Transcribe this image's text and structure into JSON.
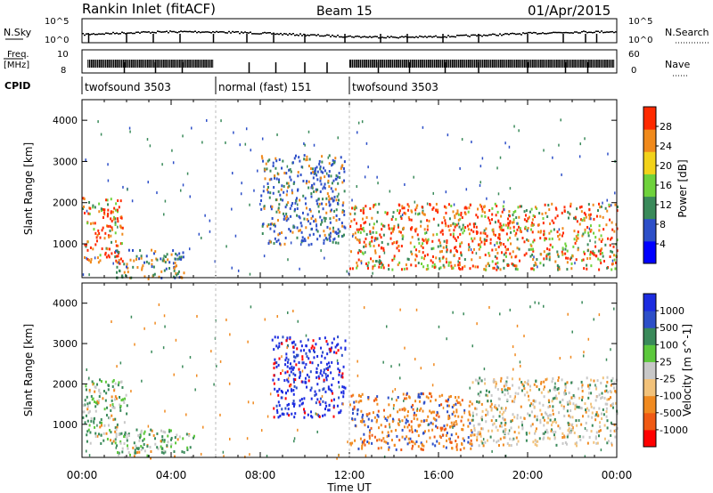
{
  "header": {
    "title": "Rankin Inlet (fitACF)",
    "beam": "Beam 15",
    "date": "01/Apr/2015"
  },
  "strip_labels": {
    "nsky": "N.Sky",
    "nsearch": "N.Search",
    "freq_top": "Freq.",
    "freq_unit": "[MHz]",
    "nave": "Nave",
    "cpid": "CPID",
    "nsky_ticks": [
      "10^5",
      "10^0"
    ],
    "nsearch_ticks": [
      "10^5",
      "10^0"
    ],
    "freq_ticks": [
      "10",
      "8"
    ],
    "nave_ticks": [
      "60",
      "0"
    ]
  },
  "cpid_segments": [
    {
      "label": "twofsound 3503",
      "start_hour": 0
    },
    {
      "label": "normal (fast) 151",
      "start_hour": 6
    },
    {
      "label": "twofsound 3503",
      "start_hour": 12
    }
  ],
  "chart_data": [
    {
      "type": "heatmap",
      "name": "power-panel",
      "ylabel": "Slant Range [km]",
      "xlabel": "",
      "xlim_hours": [
        0,
        24
      ],
      "ylim": [
        180,
        4500
      ],
      "yticks": [
        1000,
        2000,
        3000,
        4000
      ],
      "colorbar": {
        "label": "Power [dB]",
        "ticks": [
          "28",
          "24",
          "20",
          "16",
          "12",
          "8",
          "4"
        ],
        "colors": [
          "#0000ff",
          "#2d4fc8",
          "#3a8a5a",
          "#6fd23c",
          "#f2d21a",
          "#f08a1c",
          "#ff2a00"
        ],
        "range": [
          0,
          30
        ]
      },
      "regions": [
        {
          "t0": 0.0,
          "t1": 1.8,
          "r0": 550,
          "r1": 2150,
          "level": "high"
        },
        {
          "t0": 1.5,
          "t1": 4.6,
          "r0": 180,
          "r1": 900,
          "level": "mid"
        },
        {
          "t0": 8.0,
          "t1": 11.8,
          "r0": 1000,
          "r1": 3200,
          "level": "low"
        },
        {
          "t0": 12.0,
          "t1": 24.0,
          "r0": 400,
          "r1": 2000,
          "level": "high"
        }
      ]
    },
    {
      "type": "heatmap",
      "name": "velocity-panel",
      "ylabel": "Slant Range [km]",
      "xlabel": "Time UT",
      "xticks": [
        "00:00",
        "04:00",
        "08:00",
        "12:00",
        "16:00",
        "20:00",
        "00:00"
      ],
      "xlim_hours": [
        0,
        24
      ],
      "ylim": [
        180,
        4500
      ],
      "yticks": [
        1000,
        2000,
        3000,
        4000
      ],
      "colorbar": {
        "label": "Velocity [m s^-1]",
        "ticks": [
          "1000",
          "500",
          "100",
          "25",
          "-25",
          "-100",
          "-500",
          "-1000"
        ],
        "colors": [
          "#ff0000",
          "#f05a14",
          "#f08a20",
          "#f2c27a",
          "#c8c8c8",
          "#5cc83c",
          "#3a8a5a",
          "#2d4fc8",
          "#1c2ce0"
        ],
        "range": [
          -1200,
          1200
        ]
      },
      "regions": [
        {
          "t0": 0.0,
          "t1": 2.0,
          "r0": 550,
          "r1": 2150,
          "level": "neutral"
        },
        {
          "t0": 1.5,
          "t1": 5.0,
          "r0": 180,
          "r1": 900,
          "level": "neutral"
        },
        {
          "t0": 8.5,
          "t1": 11.8,
          "r0": 1200,
          "r1": 3200,
          "level": "toward"
        },
        {
          "t0": 12.0,
          "t1": 17.5,
          "r0": 400,
          "r1": 1800,
          "level": "away"
        },
        {
          "t0": 17.5,
          "t1": 24.0,
          "r0": 500,
          "r1": 2200,
          "level": "mixed"
        }
      ]
    }
  ]
}
